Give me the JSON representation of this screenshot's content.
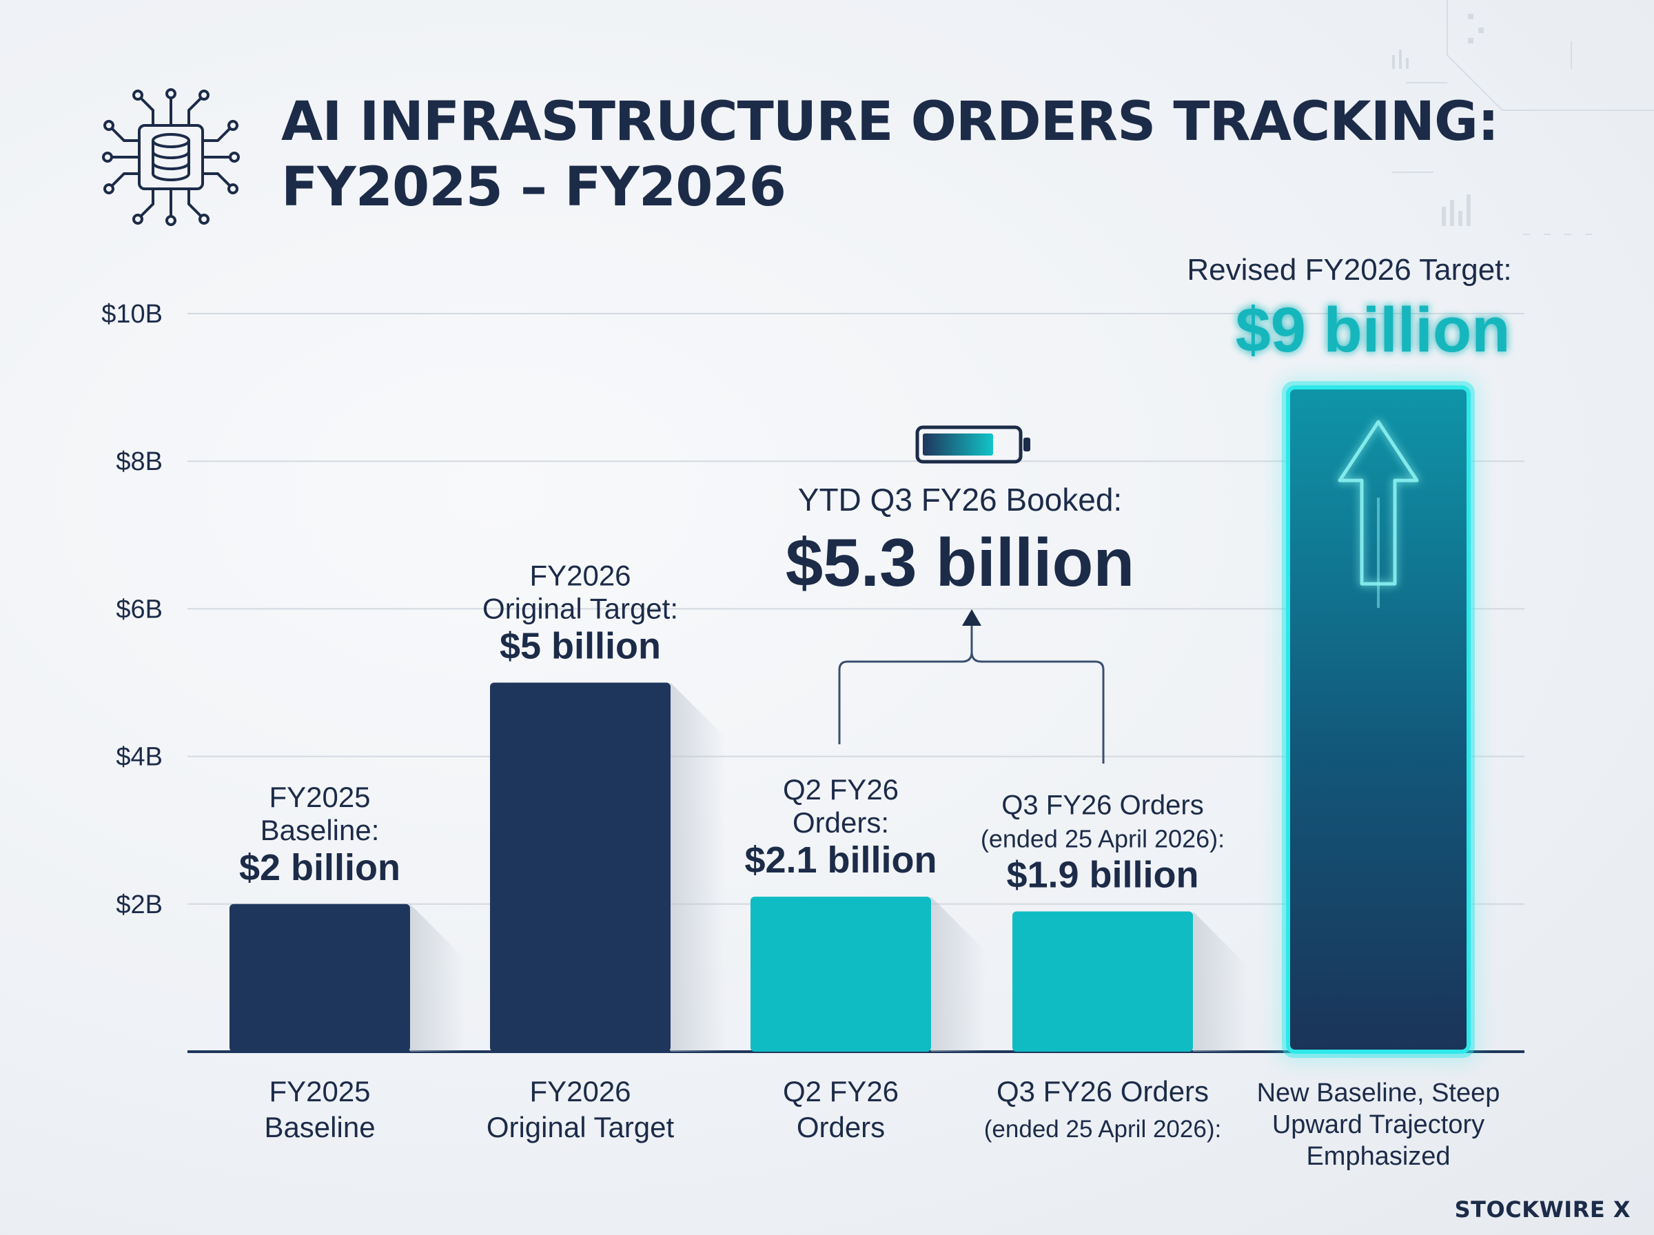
{
  "title": {
    "line1": "AI INFRASTRUCTURE ORDERS TRACKING:",
    "line2": "FY2025 – FY2026"
  },
  "icons": {
    "header": "chip-database-icon",
    "battery": "battery-icon",
    "arrow": "up-arrow-icon"
  },
  "brand": "STOCKWIRE X",
  "colors": {
    "navy": "#1f365c",
    "teal": "#0fbcc3",
    "glow": "#2ee8ea",
    "text": "#1c2b48",
    "grid": "#d3d9e0"
  },
  "chart_data": {
    "type": "bar",
    "ylim": [
      0,
      10
    ],
    "y_ticks": [
      {
        "value": 2,
        "label": "$2B"
      },
      {
        "value": 4,
        "label": "$4B"
      },
      {
        "value": 6,
        "label": "$6B"
      },
      {
        "value": 8,
        "label": "$8B"
      },
      {
        "value": 10,
        "label": "$10B"
      }
    ],
    "grid": true,
    "bars": [
      {
        "value": 2.0,
        "color": "navy",
        "style": "solid",
        "category": [
          "FY2025",
          "Baseline"
        ],
        "label_lines": [
          "FY2025",
          "Baseline:"
        ],
        "value_label": "$2 billion"
      },
      {
        "value": 5.0,
        "color": "navy",
        "style": "solid",
        "category": [
          "FY2026",
          "Original Target"
        ],
        "label_lines": [
          "FY2026",
          "Original Target:"
        ],
        "value_label": "$5 billion"
      },
      {
        "value": 2.1,
        "color": "teal",
        "style": "solid",
        "category": [
          "Q2 FY26",
          "Orders"
        ],
        "label_lines": [
          "Q2 FY26",
          "Orders:"
        ],
        "value_label": "$2.1 billion"
      },
      {
        "value": 1.9,
        "color": "teal",
        "style": "solid",
        "category": [
          "Q3 FY26 Orders",
          "(ended 25 April 2026):"
        ],
        "label_lines": [
          "Q3 FY26 Orders",
          "(ended 25 April 2026):"
        ],
        "value_label": "$1.9 billion"
      },
      {
        "value": 9.0,
        "color": "glow",
        "style": "glow",
        "category": [
          "New Baseline, Steep",
          "Upward Trajectory",
          "Emphasized"
        ],
        "label_lines": [
          "Revised FY2026 Target:"
        ],
        "value_label": "$9 billion"
      }
    ],
    "annotations": [
      {
        "text": "YTD Q3 FY26 Booked:",
        "value_text": "$5.3 billion",
        "value": 5.3,
        "spans_bars": [
          2,
          3
        ]
      }
    ]
  }
}
